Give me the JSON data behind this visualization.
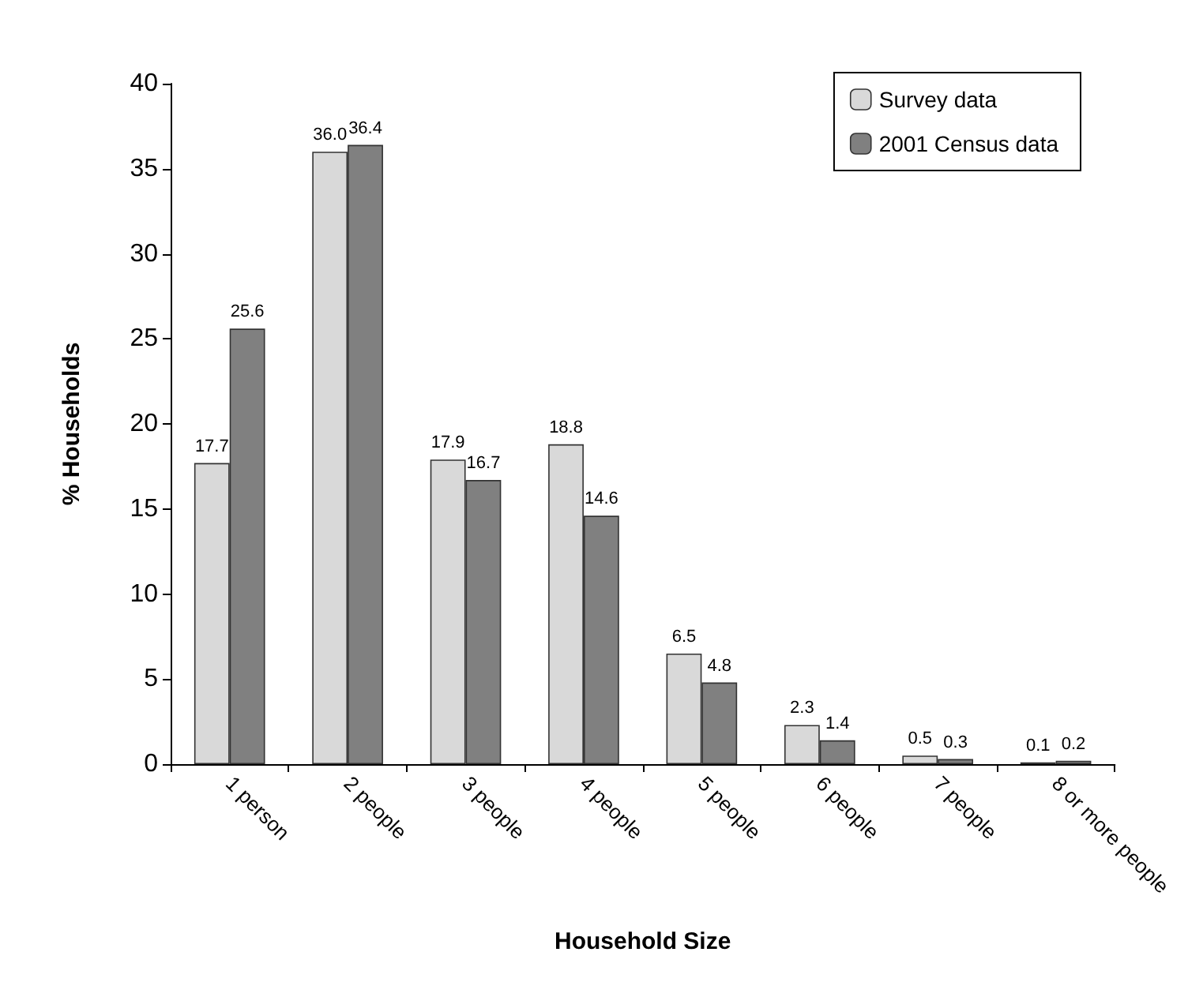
{
  "chart_data": {
    "type": "bar",
    "xlabel": "Household Size",
    "ylabel": "% Households",
    "categories": [
      "1 person",
      "2 people",
      "3 people",
      "4 people",
      "5 people",
      "6 people",
      "7 people",
      "8 or more people"
    ],
    "series": [
      {
        "name": "Survey data",
        "color": "#d9d9d9",
        "values": [
          17.7,
          36.0,
          17.9,
          18.8,
          6.5,
          2.3,
          0.5,
          0.1
        ],
        "value_labels": [
          "17.7",
          "36.0",
          "17.9",
          "18.8",
          "6.5",
          "2.3",
          "0.5",
          "0.1"
        ]
      },
      {
        "name": "2001 Census data",
        "color": "#808080",
        "values": [
          25.6,
          36.4,
          16.7,
          14.6,
          4.8,
          1.4,
          0.3,
          0.2
        ],
        "value_labels": [
          "25.6",
          "36.4",
          "16.7",
          "14.6",
          "4.8",
          "1.4",
          "0.3",
          "0.2"
        ]
      }
    ],
    "ylim": [
      0,
      40
    ],
    "yticks": [
      0,
      5,
      10,
      15,
      20,
      25,
      30,
      35,
      40
    ],
    "grid": false,
    "legend": "top right"
  }
}
